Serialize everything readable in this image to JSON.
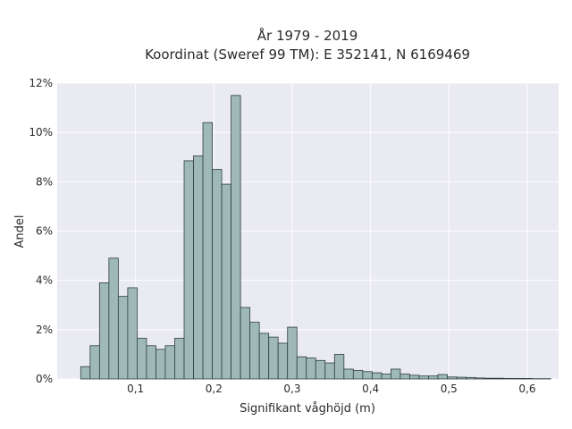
{
  "chart_data": {
    "type": "bar",
    "title_lines": [
      "År 1979 - 2019",
      "Koordinat (Sweref 99 TM): E 352141, N 6169469"
    ],
    "xlabel": "Signifikant våghöjd (m)",
    "ylabel": "Andel",
    "xlim": [
      0.0,
      0.64
    ],
    "ylim": [
      0,
      12
    ],
    "x_ticks": [
      0.1,
      0.2,
      0.3,
      0.4,
      0.5,
      0.6
    ],
    "x_tick_labels": [
      "0,1",
      "0,2",
      "0,3",
      "0,4",
      "0,5",
      "0,6"
    ],
    "y_ticks": [
      0,
      2,
      4,
      6,
      8,
      10,
      12
    ],
    "y_tick_labels": [
      "0%",
      "2%",
      "4%",
      "6%",
      "8%",
      "10%",
      "12%"
    ],
    "grid": true,
    "bin_start": 0.03,
    "bin_width": 0.012,
    "values": [
      0.5,
      1.35,
      3.9,
      4.9,
      3.35,
      3.7,
      1.65,
      1.35,
      1.2,
      1.35,
      1.65,
      8.85,
      9.05,
      10.4,
      8.5,
      7.9,
      11.5,
      2.9,
      2.3,
      1.85,
      1.7,
      1.45,
      2.1,
      0.9,
      0.85,
      0.75,
      0.65,
      1.0,
      0.4,
      0.35,
      0.3,
      0.25,
      0.2,
      0.4,
      0.2,
      0.15,
      0.12,
      0.12,
      0.18,
      0.08,
      0.07,
      0.06,
      0.04,
      0.03,
      0.03,
      0.02,
      0.02,
      0.02,
      0.01,
      0.01
    ],
    "colors": {
      "bar_fill": "#9fb8b8",
      "bar_edge": "#2f3f3f",
      "plot_bg": "#eaeaf2",
      "grid": "#ffffff"
    }
  }
}
